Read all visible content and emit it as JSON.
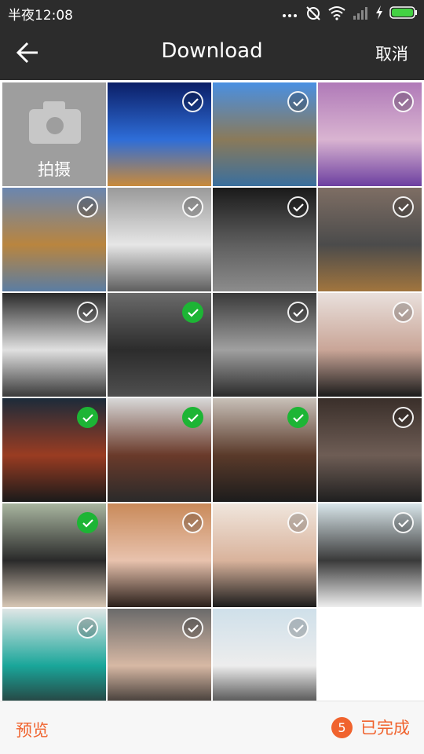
{
  "status_bar": {
    "time": "半夜12:08",
    "icons": [
      "more-dots-icon",
      "alarm-off-icon",
      "wifi-icon",
      "signal-icon",
      "charging-icon",
      "battery-icon"
    ]
  },
  "header": {
    "back_icon": "arrow-left-icon",
    "title": "Download",
    "cancel_label": "取消"
  },
  "camera_tile": {
    "icon": "camera-icon",
    "label": "拍摄"
  },
  "photos": [
    {
      "id": "sunset-beach",
      "selected": false,
      "colors": [
        "#0b1e66",
        "#2e6dd8",
        "#c98a3a"
      ]
    },
    {
      "id": "mountain-lake",
      "selected": false,
      "colors": [
        "#4a90e2",
        "#8a7a5a",
        "#3a6f9e"
      ]
    },
    {
      "id": "purple-lake-flowers",
      "selected": false,
      "colors": [
        "#b07ab8",
        "#d9b4d1",
        "#6d3fa0"
      ]
    },
    {
      "id": "desert-reflection",
      "selected": false,
      "colors": [
        "#6a86b0",
        "#b9853f",
        "#5b7da3"
      ]
    },
    {
      "id": "white-supercar-front",
      "selected": false,
      "colors": [
        "#9a9a9a",
        "#e6e6e6",
        "#5e5e5e"
      ]
    },
    {
      "id": "grey-supercar-show",
      "selected": false,
      "colors": [
        "#1a1a1a",
        "#5f5f5f",
        "#8c8c8c"
      ]
    },
    {
      "id": "grey-supercar-leaves",
      "selected": false,
      "colors": [
        "#7e6e64",
        "#4b4b4b",
        "#a1753e"
      ]
    },
    {
      "id": "white-hypercar",
      "selected": false,
      "colors": [
        "#2a2a2a",
        "#e0e0e0",
        "#3a3a3a"
      ]
    },
    {
      "id": "dark-supercar-road",
      "selected": true,
      "colors": [
        "#6a6a6a",
        "#2c2c2c",
        "#4f4f4f"
      ]
    },
    {
      "id": "silver-hypercar",
      "selected": false,
      "colors": [
        "#3a3a3a",
        "#a0a0a0",
        "#2a2a2a"
      ]
    },
    {
      "id": "woman-black-dress",
      "selected": false,
      "colors": [
        "#e9e0dc",
        "#c9a597",
        "#1b1b1b"
      ]
    },
    {
      "id": "red-hair-portrait",
      "selected": true,
      "colors": [
        "#1c2b3a",
        "#9a3c22",
        "#1a1a1a"
      ]
    },
    {
      "id": "red-hair-standing",
      "selected": true,
      "colors": [
        "#d8d8d8",
        "#6a3a2a",
        "#2a2a2a"
      ]
    },
    {
      "id": "red-hair-crouching",
      "selected": true,
      "colors": [
        "#c8c0b8",
        "#5a3a2a",
        "#1c1c1c"
      ]
    },
    {
      "id": "woman-grey-coat",
      "selected": false,
      "colors": [
        "#3a2f2a",
        "#6e5d55",
        "#1f1f1f"
      ]
    },
    {
      "id": "woman-long-hair-light",
      "selected": true,
      "colors": [
        "#a9b6a0",
        "#2a2a2a",
        "#d7c7b5"
      ]
    },
    {
      "id": "woman-braids-portrait",
      "selected": false,
      "colors": [
        "#c98a5a",
        "#e8c2ad",
        "#2a1f1a"
      ]
    },
    {
      "id": "woman-necklace-portrait",
      "selected": false,
      "colors": [
        "#f0e6dd",
        "#d9b39c",
        "#1b1b1b"
      ]
    },
    {
      "id": "woman-hat-plaid",
      "selected": false,
      "colors": [
        "#d9e6ea",
        "#3a3a3a",
        "#efefef"
      ]
    },
    {
      "id": "woman-teal-shirt",
      "selected": false,
      "colors": [
        "#dfe6e6",
        "#1aa69a",
        "#2a2a2a"
      ]
    },
    {
      "id": "woman-long-hair-dark",
      "selected": false,
      "colors": [
        "#6a6a6a",
        "#d7b8a4",
        "#1b1b1b"
      ]
    },
    {
      "id": "woman-white-dress",
      "selected": false,
      "colors": [
        "#cfe0ea",
        "#ededed",
        "#2a2a2a"
      ]
    }
  ],
  "footer": {
    "preview_label": "预览",
    "selected_count": "5",
    "done_label": "已完成"
  },
  "colors": {
    "bar_bg": "#2c2c2c",
    "accent": "#f0632e",
    "check_selected": "#1db535"
  }
}
